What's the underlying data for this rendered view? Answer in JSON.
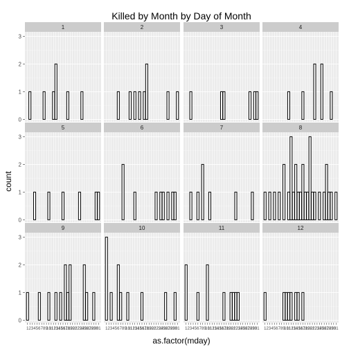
{
  "chart_data": {
    "type": "bar",
    "title": "Killed by Month by Day of Month",
    "xlabel": "as.factor(mday)",
    "ylabel": "count",
    "ylim": [
      0,
      3
    ],
    "yticks": [
      "0",
      "1",
      "2",
      "3"
    ],
    "x_levels": [
      "1",
      "2",
      "3",
      "4",
      "5",
      "6",
      "7",
      "8",
      "9",
      "10",
      "11",
      "12",
      "13",
      "14",
      "15",
      "16",
      "17",
      "18",
      "19",
      "20",
      "21",
      "22",
      "23",
      "24",
      "25",
      "26",
      "27",
      "28",
      "29",
      "30",
      "31"
    ],
    "facet_var": "month",
    "facets": [
      {
        "label": "1",
        "counts": {
          "2": 1,
          "8": 1,
          "12": 1,
          "13": 2,
          "18": 1,
          "24": 1
        }
      },
      {
        "label": "2",
        "counts": {
          "6": 1,
          "11": 1,
          "13": 1,
          "15": 1,
          "17": 1,
          "18": 2,
          "27": 1,
          "31": 1
        }
      },
      {
        "label": "3",
        "counts": {
          "3": 1,
          "16": 1,
          "17": 1,
          "28": 1,
          "30": 1,
          "31": 1
        }
      },
      {
        "label": "4",
        "counts": {
          "11": 1,
          "17": 1,
          "22": 2,
          "25": 2,
          "29": 1
        }
      },
      {
        "label": "5",
        "counts": {
          "4": 1,
          "10": 1,
          "16": 1,
          "23": 1,
          "30": 1,
          "31": 1
        }
      },
      {
        "label": "6",
        "counts": {
          "8": 2,
          "13": 1,
          "22": 1,
          "24": 1,
          "25": 1,
          "27": 1,
          "29": 1,
          "30": 1
        }
      },
      {
        "label": "7",
        "counts": {
          "3": 1,
          "6": 1,
          "8": 2,
          "11": 1,
          "22": 1,
          "29": 1
        }
      },
      {
        "label": "8",
        "counts": {
          "1": 1,
          "3": 1,
          "5": 1,
          "7": 1,
          "9": 2,
          "11": 1,
          "12": 3,
          "13": 1,
          "14": 2,
          "15": 1,
          "16": 1,
          "17": 2,
          "18": 1,
          "19": 1,
          "20": 3,
          "21": 1,
          "22": 1,
          "24": 1,
          "26": 1,
          "27": 2,
          "28": 1,
          "29": 1,
          "31": 1
        }
      },
      {
        "label": "9",
        "counts": {
          "1": 1,
          "6": 1,
          "10": 1,
          "13": 1,
          "15": 1,
          "17": 2,
          "18": 1,
          "19": 2,
          "25": 2,
          "26": 1,
          "29": 1
        }
      },
      {
        "label": "10",
        "counts": {
          "1": 3,
          "3": 1,
          "6": 2,
          "7": 1,
          "10": 1,
          "16": 1,
          "26": 1,
          "30": 1
        }
      },
      {
        "label": "11",
        "counts": {
          "1": 2,
          "6": 1,
          "10": 2,
          "17": 1,
          "20": 1,
          "21": 1,
          "22": 1,
          "23": 1
        }
      },
      {
        "label": "12",
        "counts": {
          "1": 1,
          "9": 1,
          "10": 1,
          "11": 1,
          "12": 1,
          "14": 1,
          "15": 1,
          "17": 1
        }
      }
    ],
    "bar_fill": "#ffffff",
    "bar_stroke": "#000000",
    "panel_background": "#ebebeb",
    "grid_color": "#ffffff",
    "strip_background": "#cccccc",
    "grid": true
  }
}
